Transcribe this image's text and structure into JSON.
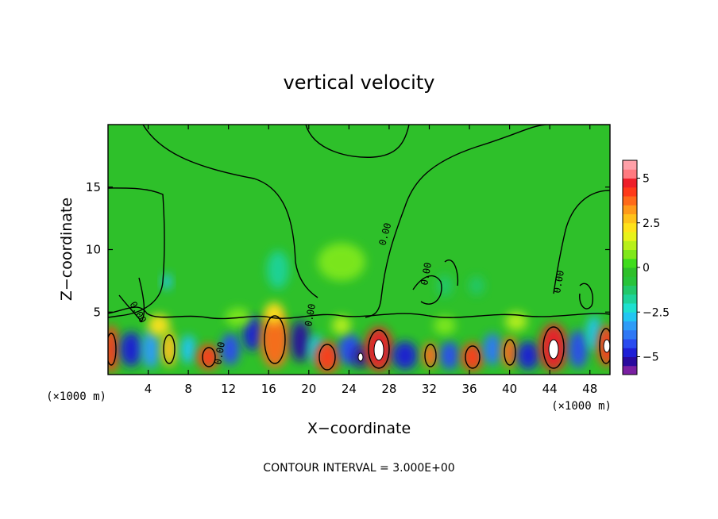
{
  "chart_data": {
    "type": "heatmap",
    "title": "vertical velocity",
    "xlabel": "X−coordinate",
    "ylabel": "Z−coordinate",
    "x_unit": "(×1000 m)",
    "y_unit": "(×1000 m)",
    "xlim": [
      0,
      50
    ],
    "ylim": [
      0,
      20
    ],
    "x_ticks": [
      4,
      8,
      12,
      16,
      20,
      24,
      28,
      32,
      36,
      40,
      44,
      48
    ],
    "x_tick_labels": [
      "4",
      "8",
      "12",
      "16",
      "20",
      "24",
      "28",
      "32",
      "36",
      "40",
      "44",
      "48"
    ],
    "y_ticks": [
      5,
      10,
      15
    ],
    "y_tick_labels": [
      "5",
      "10",
      "15"
    ],
    "contour_label": "0.00",
    "footnote": "CONTOUR INTERVAL = 3.000E+00",
    "colorbar": {
      "range": [
        -6,
        6
      ],
      "levels": [
        -6,
        -5,
        -4.5,
        -4,
        -3.5,
        -3,
        -2.5,
        -2,
        -1.5,
        -1,
        -0.5,
        0,
        0.5,
        1,
        1.5,
        2,
        2.5,
        3,
        3.5,
        4,
        4.5,
        5,
        5.5,
        6
      ],
      "colors": [
        "#7a1fa2",
        "#2a0a9e",
        "#1f1fd6",
        "#2a4bef",
        "#2f78f5",
        "#2f9cf7",
        "#22c6f2",
        "#1ee0d0",
        "#1ed39a",
        "#22c86a",
        "#28c33a",
        "#2ec02a",
        "#3fdc1c",
        "#7fe81a",
        "#b8f01a",
        "#e8f21a",
        "#ffe21a",
        "#ffc21a",
        "#ff9a1a",
        "#ff6a1a",
        "#ff3a1a",
        "#ee1f2a",
        "#ff7a80",
        "#ffa0a8"
      ],
      "ticks": [
        -5,
        -2.5,
        0,
        2.5,
        5
      ],
      "tick_labels": [
        "−5",
        "−2.5",
        "0",
        "2.5",
        "5"
      ]
    }
  }
}
